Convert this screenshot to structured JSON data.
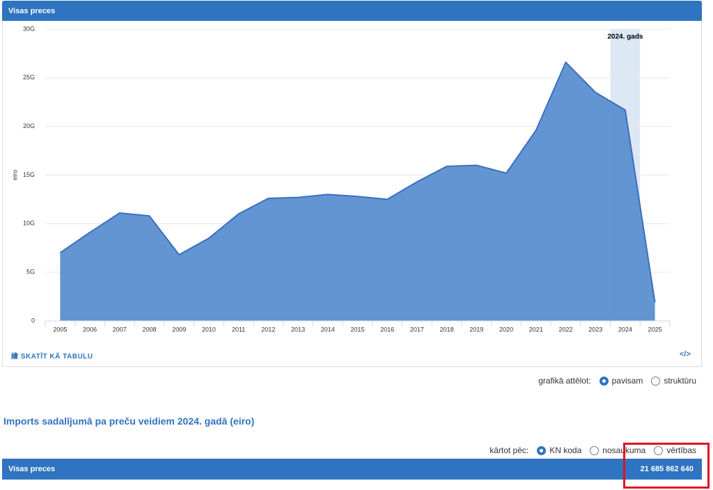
{
  "panel": {
    "title": "Visas preces",
    "table_link": "SKATĪT KĀ TABULU",
    "embed_link": "</>"
  },
  "chart_data": {
    "type": "area",
    "y_label": "eiro",
    "color": "#5b8fd0",
    "line_color": "#3a6fbf",
    "categories": [
      "2005",
      "2006",
      "2007",
      "2008",
      "2009",
      "2010",
      "2011",
      "2012",
      "2013",
      "2014",
      "2015",
      "2016",
      "2017",
      "2018",
      "2019",
      "2020",
      "2021",
      "2022",
      "2023",
      "2024",
      "2025"
    ],
    "values": [
      7000000000,
      9100000000,
      11100000000,
      10800000000,
      6800000000,
      8500000000,
      11000000000,
      12600000000,
      12700000000,
      13000000000,
      12800000000,
      12500000000,
      14300000000,
      15900000000,
      16000000000,
      15200000000,
      19600000000,
      26600000000,
      23500000000,
      21685862640,
      1900000000
    ],
    "ylim": [
      0,
      30000000000
    ],
    "yticks": [
      0,
      {
        "value": 5000000000,
        "label": "5G"
      },
      {
        "value": 10000000000,
        "label": "10G"
      },
      {
        "value": 15000000000,
        "label": "15G"
      },
      {
        "value": 20000000000,
        "label": "20G"
      },
      {
        "value": 25000000000,
        "label": "25G"
      },
      {
        "value": 30000000000,
        "label": "30G"
      }
    ],
    "grid": true,
    "annotations": [
      {
        "text": "2024. gads",
        "x": "2024"
      }
    ]
  },
  "display_options": {
    "label": "grafikā attēlot:",
    "options": [
      "pavisam",
      "struktūru"
    ],
    "selected": 0
  },
  "section_title": "Imports sadalījumā pa preču veidiem 2024. gadā (eiro)",
  "sort_options": {
    "label": "kārtot pēc:",
    "options": [
      "KN koda",
      "nosaukuma",
      "vērtības"
    ],
    "selected": 0
  },
  "table": {
    "rows": [
      {
        "name": "Visas preces",
        "value": "21 685 862 640"
      }
    ]
  }
}
